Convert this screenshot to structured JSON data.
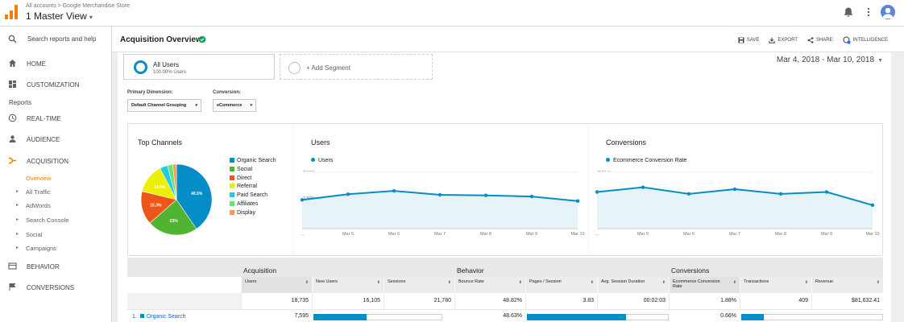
{
  "header": {
    "breadcrumb": "All accounts > Google Merchandise Store",
    "view": "1 Master View",
    "view_caret": "▾"
  },
  "sidebar": {
    "search_label": "Search reports and help",
    "items": {
      "home": "HOME",
      "customization": "CUSTOMIZATION",
      "reports": "Reports",
      "realtime": "REAL-TIME",
      "audience": "AUDIENCE",
      "acquisition": "ACQUISITION",
      "behavior": "BEHAVIOR",
      "conversions": "CONVERSIONS"
    },
    "acquisition_sub": [
      "Overview",
      "All Traffic",
      "AdWords",
      "Search Console",
      "Social",
      "Campaigns"
    ],
    "accent_color": "#f57c00"
  },
  "page": {
    "title": "Acquisition Overview",
    "actions": {
      "save": "SAVE",
      "export": "EXPORT",
      "share": "SHARE",
      "intelligence": "INTELLIGENCE"
    },
    "date_range": "Mar 4, 2018 - Mar 10, 2018",
    "segments": {
      "active_name": "All Users",
      "active_pct": "100.00% Users",
      "add": "+ Add Segment"
    },
    "primary_dimension_label": "Primary Dimension:",
    "primary_dimension_value": "Default Channel Grouping",
    "conversion_label": "Conversion:",
    "conversion_value": "eCommerce"
  },
  "chart_data": [
    {
      "type": "pie",
      "title": "Top Channels",
      "categories": [
        "Organic Search",
        "Social",
        "Direct",
        "Referral",
        "Paid Search",
        "Affiliates",
        "Display"
      ],
      "values": [
        40.5,
        23.0,
        15.3,
        13.5,
        3.6,
        2.4,
        1.7
      ],
      "slice_labels": [
        "40.5%",
        "23%",
        "15.3%",
        "13.5%",
        "",
        "",
        ""
      ],
      "colors": [
        "#058dc7",
        "#50b432",
        "#ed561b",
        "#edef00",
        "#24cbe5",
        "#64e572",
        "#ff9655"
      ],
      "legend_placement": "right"
    },
    {
      "type": "area",
      "title": "Users",
      "x": [
        "...",
        "Mar 5",
        "Mar 6",
        "Mar 7",
        "Mar 8",
        "Mar 9",
        "Mar 10"
      ],
      "series": [
        {
          "name": "Users",
          "values": [
            2550,
            3050,
            3350,
            3000,
            2950,
            2850,
            2450
          ]
        }
      ],
      "yticks": [
        "5,000",
        "2,500"
      ],
      "ytick_values": [
        5000,
        2500
      ],
      "ylim": [
        0,
        5000
      ],
      "color": "#058dc7"
    },
    {
      "type": "area",
      "title": "Conversions",
      "x": [
        "...",
        "Mar 5",
        "Mar 6",
        "Mar 7",
        "Mar 8",
        "Mar 9",
        "Mar 10"
      ],
      "series": [
        {
          "name": "Ecommerce Conversion Rate",
          "values": [
            1.95,
            2.2,
            1.85,
            2.1,
            1.85,
            1.95,
            1.25
          ]
        }
      ],
      "yticks": [
        "3.00%",
        "1.50%"
      ],
      "ytick_values": [
        3.0,
        1.5
      ],
      "ylim": [
        0,
        3.0
      ],
      "color": "#058dc7"
    }
  ],
  "table": {
    "groups": {
      "acquisition": "Acquisition",
      "behavior": "Behavior",
      "conversions": "Conversions"
    },
    "columns": [
      "Users",
      "New Users",
      "Sessions",
      "Bounce Rate",
      "Pages / Session",
      "Avg. Session Duration",
      "Ecommerce Conversion Rate",
      "Transactions",
      "Revenue"
    ],
    "totals": [
      "18,735",
      "16,105",
      "21,780",
      "48.82%",
      "3.83",
      "00:02:03",
      "1.88%",
      "409",
      "$81,632.41"
    ],
    "first_row": {
      "index": "1.",
      "name": "Organic Search",
      "users": "7,595",
      "bounce_rate": "48.63%",
      "conversion_rate": "0.66%",
      "new_users_share": 0.41,
      "pages_session_share": 0.7,
      "transactions_share": 0.16
    }
  }
}
